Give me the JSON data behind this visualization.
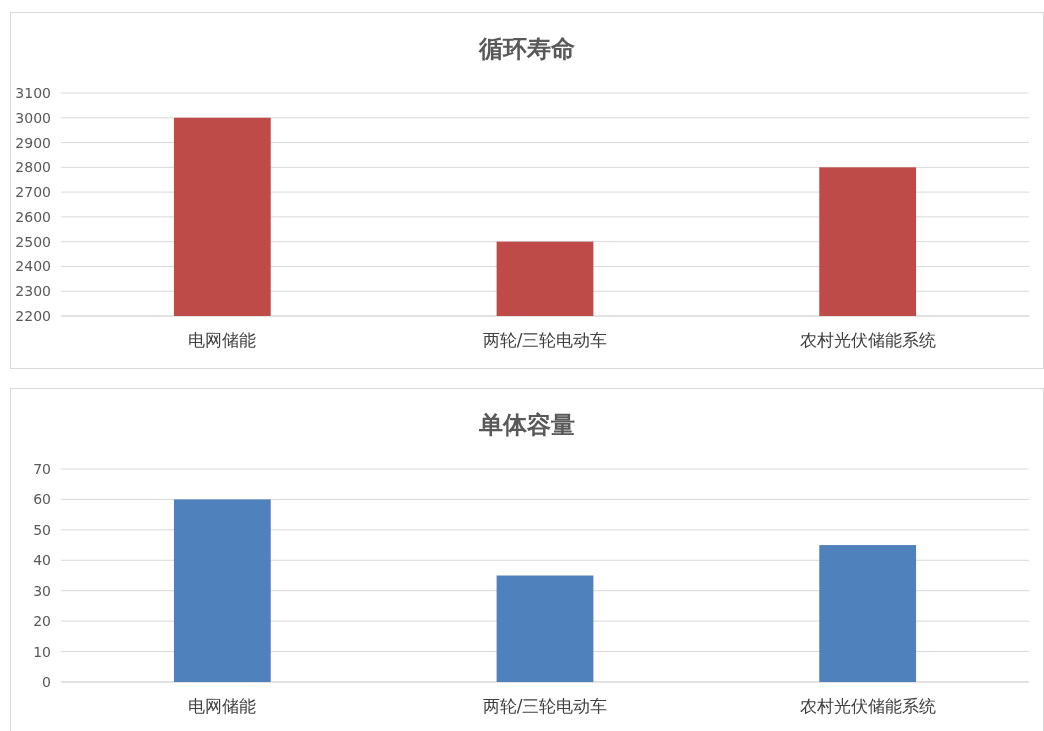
{
  "chart_data": [
    {
      "type": "bar",
      "title": "循环寿命",
      "categories": [
        "电网储能",
        "两轮/三轮电动车",
        "农村光伏储能系统"
      ],
      "values": [
        3000,
        2500,
        2800
      ],
      "color": "#be4b48",
      "ylim": [
        2200,
        3100
      ],
      "yticks": [
        2200,
        2300,
        2400,
        2500,
        2600,
        2700,
        2800,
        2900,
        3000,
        3100
      ],
      "grid": "y"
    },
    {
      "type": "bar",
      "title": "单体容量",
      "categories": [
        "电网储能",
        "两轮/三轮电动车",
        "农村光伏储能系统"
      ],
      "values": [
        60,
        35,
        45
      ],
      "color": "#4f81bd",
      "ylim": [
        0,
        70
      ],
      "yticks": [
        0,
        10,
        20,
        30,
        40,
        50,
        60,
        70
      ],
      "grid": "y"
    }
  ]
}
